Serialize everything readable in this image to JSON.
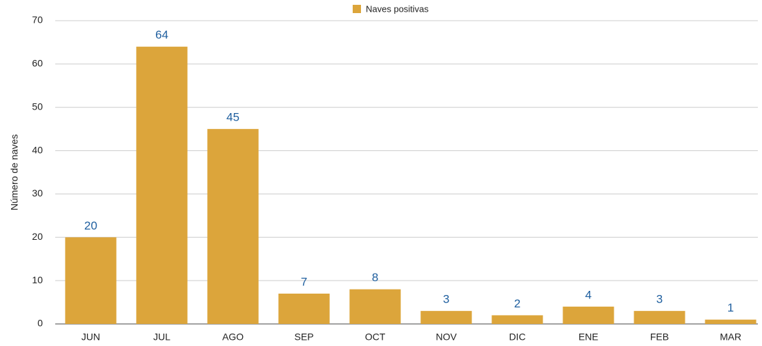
{
  "chart_data": {
    "type": "bar",
    "y_label": "Número de naves",
    "categories": [
      "JUN",
      "JUL",
      "AGO",
      "SEP",
      "OCT",
      "NOV",
      "DIC",
      "ENE",
      "FEB",
      "MAR"
    ],
    "series": [
      {
        "name": "Naves positivas",
        "color": "#dca53b",
        "values": [
          20,
          64,
          45,
          7,
          8,
          3,
          2,
          4,
          3,
          1
        ]
      }
    ],
    "ylim": [
      0,
      70
    ],
    "yticks": [
      0,
      10,
      20,
      30,
      40,
      50,
      60,
      70
    ],
    "grid": true,
    "legend": "top"
  }
}
